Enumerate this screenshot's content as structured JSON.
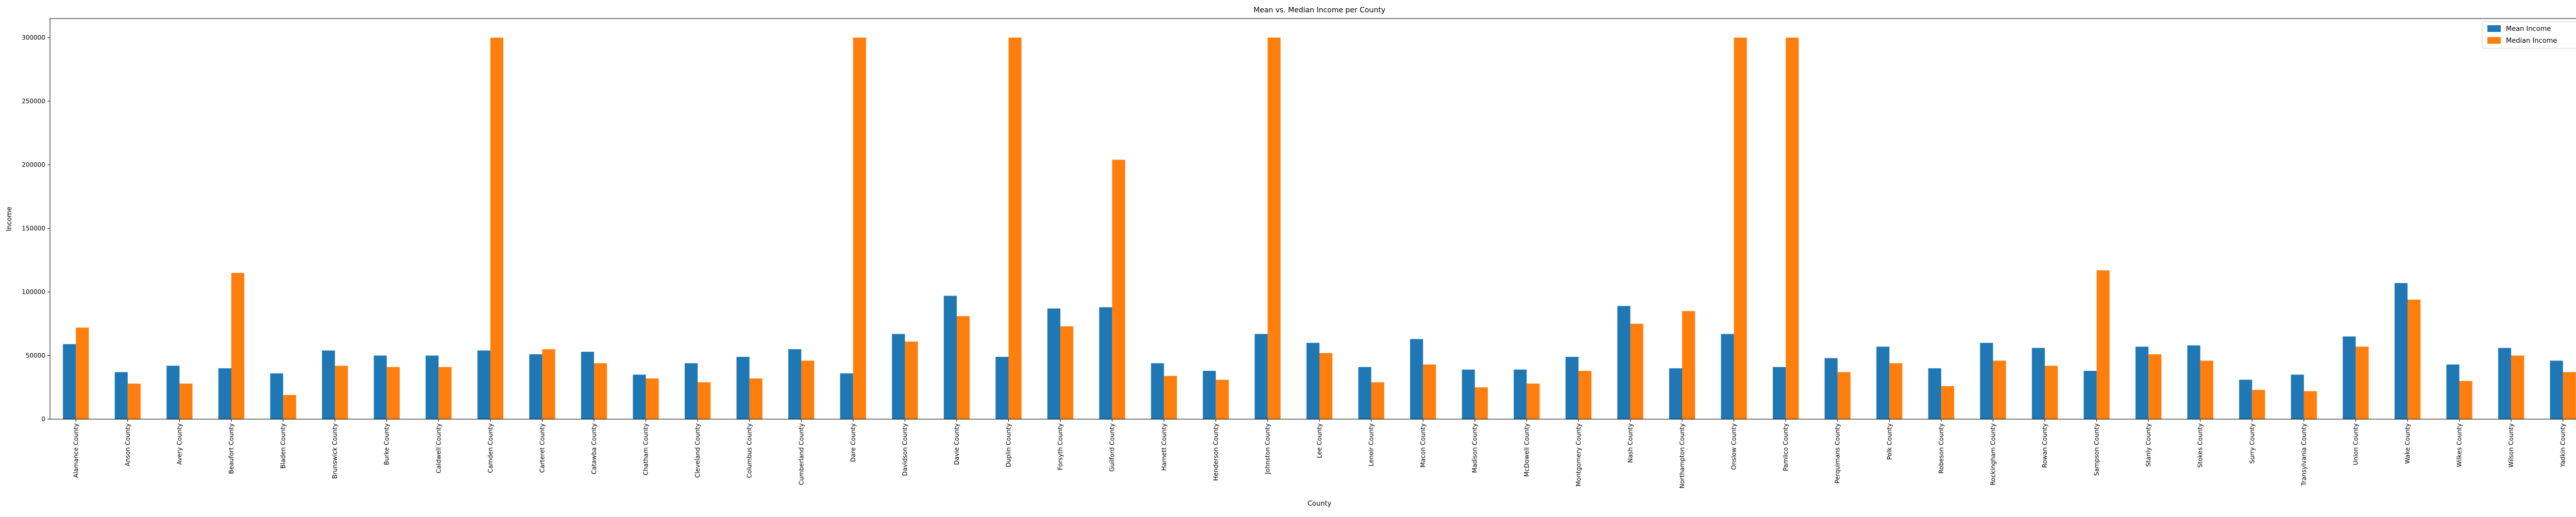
{
  "chart_data": {
    "type": "bar",
    "title": "Mean vs. Median Income per County",
    "xlabel": "County",
    "ylabel": "Income",
    "ylim": [
      0,
      315000
    ],
    "yticks": [
      0,
      50000,
      100000,
      150000,
      200000,
      250000,
      300000
    ],
    "legend_position": "top-right",
    "grid": false,
    "categories": [
      "Alamance County",
      "Anson County",
      "Avery County",
      "Beaufort County",
      "Bladen County",
      "Brunswick County",
      "Burke County",
      "Caldwell County",
      "Camden County",
      "Carteret County",
      "Catawba County",
      "Chatham County",
      "Cleveland County",
      "Columbus County",
      "Cumberland County",
      "Dare County",
      "Davidson County",
      "Davie County",
      "Duplin County",
      "Forsyth County",
      "Guilford County",
      "Harnett County",
      "Henderson County",
      "Johnston County",
      "Lee County",
      "Lenoir County",
      "Macon County",
      "Madison County",
      "McDowell County",
      "Montgomery County",
      "Nash County",
      "Northampton County",
      "Onslow County",
      "Pamlico County",
      "Perquimans County",
      "Polk County",
      "Robeson County",
      "Rockingham County",
      "Rowan County",
      "Sampson County",
      "Stanly County",
      "Stokes County",
      "Surry County",
      "Transylvania County",
      "Union County",
      "Wake County",
      "Wilkes County",
      "Wilson County",
      "Yadkin County"
    ],
    "series": [
      {
        "name": "Mean Income",
        "color": "#1f77b4",
        "values": [
          59000,
          37000,
          42000,
          40000,
          36000,
          54000,
          50000,
          50000,
          54000,
          51000,
          53000,
          35000,
          44000,
          49000,
          55000,
          36000,
          67000,
          97000,
          49000,
          87000,
          88000,
          44000,
          38000,
          67000,
          60000,
          41000,
          63000,
          39000,
          39000,
          49000,
          89000,
          40000,
          67000,
          41000,
          48000,
          57000,
          40000,
          60000,
          56000,
          38000,
          57000,
          58000,
          31000,
          35000,
          65000,
          107000,
          43000,
          56000,
          46000
        ]
      },
      {
        "name": "Median Income",
        "color": "#ff7f0e",
        "values": [
          72000,
          28000,
          28000,
          115000,
          19000,
          42000,
          41000,
          41000,
          300000,
          55000,
          44000,
          32000,
          29000,
          32000,
          46000,
          300000,
          61000,
          81000,
          300000,
          73000,
          204000,
          34000,
          31000,
          300000,
          52000,
          29000,
          43000,
          25000,
          28000,
          38000,
          75000,
          85000,
          300000,
          300000,
          37000,
          44000,
          26000,
          46000,
          42000,
          117000,
          51000,
          46000,
          23000,
          22000,
          57000,
          94000,
          30000,
          50000,
          37000
        ]
      }
    ]
  }
}
